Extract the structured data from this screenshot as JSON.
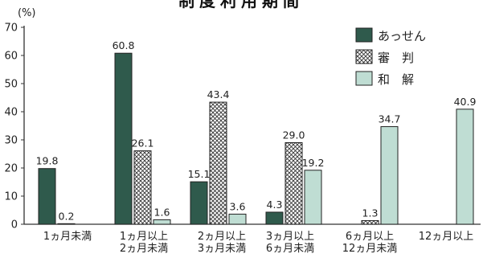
{
  "chart_data": {
    "type": "bar",
    "title": "制度利用期間",
    "unit_label": "(%)",
    "ylim": [
      0,
      70
    ],
    "yticks": [
      0,
      10,
      20,
      30,
      40,
      50,
      60,
      70
    ],
    "categories": [
      [
        "1ヵ月未満"
      ],
      [
        "1ヵ月以上",
        "2ヵ月未満"
      ],
      [
        "2ヵ月以上",
        "3ヵ月未満"
      ],
      [
        "3ヵ月以上",
        "6ヵ月未満"
      ],
      [
        "6ヵ月以上",
        "12ヵ月未満"
      ],
      [
        "12ヵ月以上"
      ]
    ],
    "series": [
      {
        "name": "あっせん",
        "values": [
          19.8,
          60.8,
          15.1,
          4.3,
          null,
          null
        ],
        "labels": [
          "19.8",
          "60.8",
          "15.1",
          "4.3",
          null,
          null
        ],
        "color": "#2f5a4c",
        "pattern": "solid"
      },
      {
        "name": "審　判",
        "values": [
          0.2,
          26.1,
          43.4,
          29.0,
          1.3,
          null
        ],
        "labels": [
          "0.2",
          "26.1",
          "43.4",
          "29.0",
          "1.3",
          null
        ],
        "color": "#ffffff",
        "pattern": "crosshatch"
      },
      {
        "name": "和　解",
        "values": [
          null,
          1.6,
          3.6,
          19.2,
          34.7,
          40.9
        ],
        "labels": [
          null,
          "1.6",
          "3.6",
          "19.2",
          "34.7",
          "40.9"
        ],
        "color": "#bfddd3",
        "pattern": "solid"
      }
    ],
    "legend_position": "top-right",
    "grid": false
  }
}
